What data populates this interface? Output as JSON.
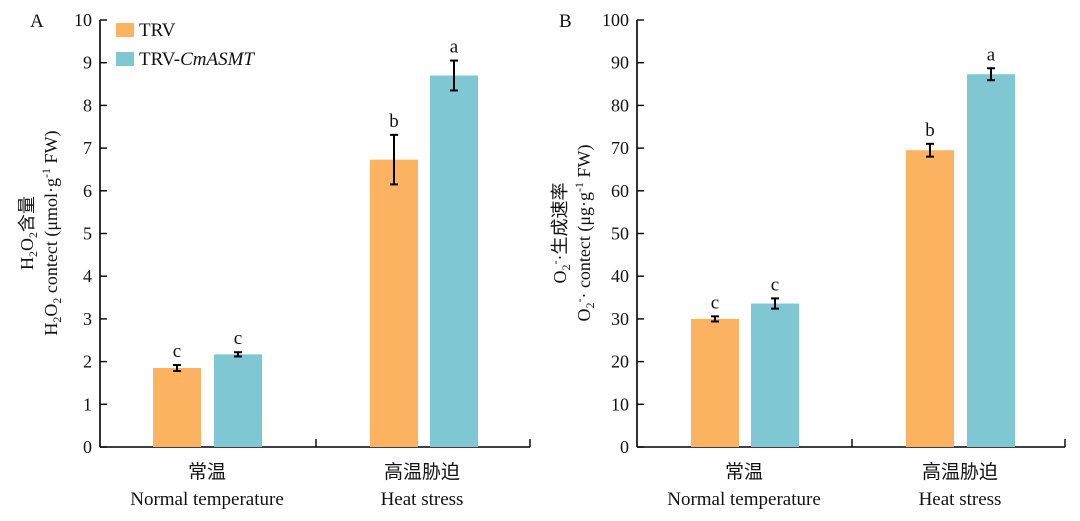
{
  "colors": {
    "TRV": "#FBB261",
    "TRV-CmASMT": "#7EC7D3"
  },
  "chart_data": [
    {
      "type": "bar",
      "panel": "A",
      "ylabel_cn": "H2O2含量",
      "ylabel_en": "H2O2 contect (μmol·g-1 FW)",
      "ylim": [
        0,
        10
      ],
      "yticks": [
        0,
        1,
        2,
        3,
        4,
        5,
        6,
        7,
        8,
        9,
        10
      ],
      "categories": [
        {
          "cn": "常温",
          "en": "Normal temperature"
        },
        {
          "cn": "高温胁迫",
          "en": "Heat stress"
        }
      ],
      "series": [
        {
          "name": "TRV",
          "values": [
            1.85,
            6.73
          ],
          "errors": [
            0.07,
            0.58
          ],
          "labels": [
            "c",
            "b"
          ]
        },
        {
          "name": "TRV-CmASMT",
          "values": [
            2.17,
            8.7
          ],
          "errors": [
            0.05,
            0.35
          ],
          "labels": [
            "c",
            "a"
          ]
        }
      ],
      "legend": [
        {
          "prefix": "TRV",
          "italic": ""
        },
        {
          "prefix": "TRV-",
          "italic": "CmASMT"
        }
      ]
    },
    {
      "type": "bar",
      "panel": "B",
      "ylabel_cn": "O2-·生成速率",
      "ylabel_en": "O2-· contect (μg·g-1 FW)",
      "ylim": [
        0,
        100
      ],
      "yticks": [
        0,
        10,
        20,
        30,
        40,
        50,
        60,
        70,
        80,
        90,
        100
      ],
      "categories": [
        {
          "cn": "常温",
          "en": "Normal temperature"
        },
        {
          "cn": "高温胁迫",
          "en": "Heat stress"
        }
      ],
      "series": [
        {
          "name": "TRV",
          "values": [
            30.0,
            69.5
          ],
          "errors": [
            0.6,
            1.5
          ],
          "labels": [
            "c",
            "b"
          ]
        },
        {
          "name": "TRV-CmASMT",
          "values": [
            33.6,
            87.3
          ],
          "errors": [
            1.2,
            1.4
          ],
          "labels": [
            "c",
            "a"
          ]
        }
      ]
    }
  ]
}
